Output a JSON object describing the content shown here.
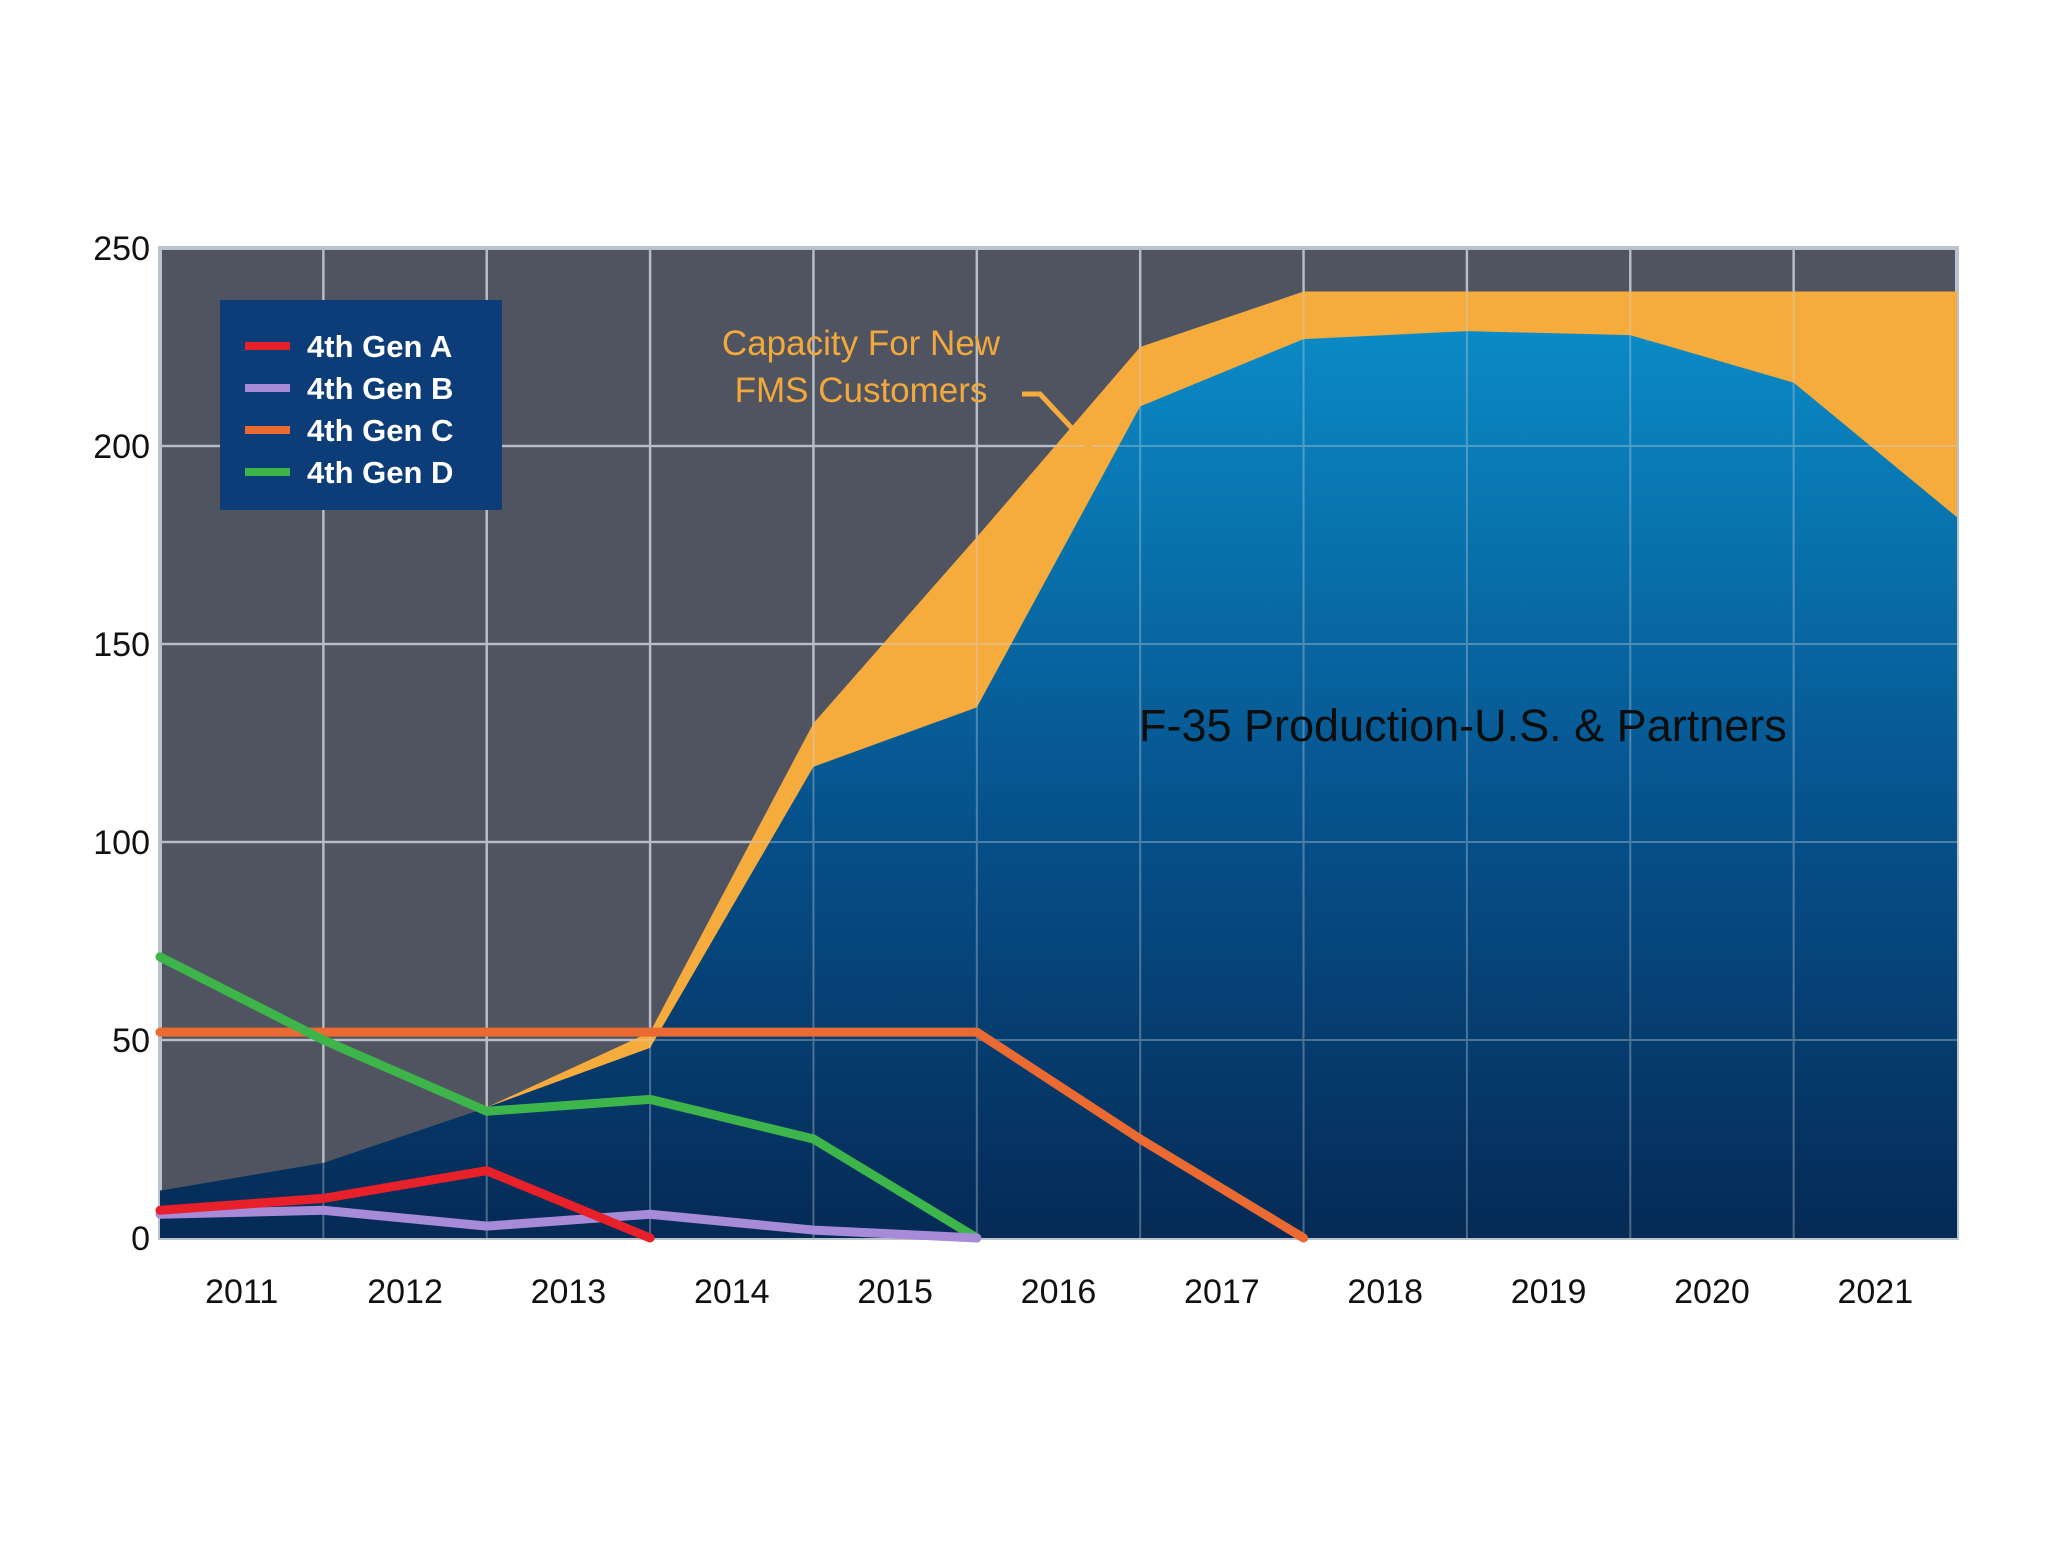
{
  "chart_data": {
    "type": "area",
    "title": "",
    "xlabel": "",
    "ylabel": "",
    "ylim": [
      0,
      250
    ],
    "yticks": [
      0,
      50,
      100,
      150,
      200,
      250
    ],
    "categories": [
      "2011",
      "2012",
      "2013",
      "2014",
      "2015",
      "2016",
      "2017",
      "2018",
      "2019",
      "2020",
      "2021"
    ],
    "x_points": [
      2010.5,
      2011.5,
      2012.5,
      2013.5,
      2014.5,
      2015.5,
      2016.5,
      2017.5,
      2018.5,
      2019.5,
      2020.5,
      2021.5
    ],
    "grid": true,
    "areas": [
      {
        "name": "F-35 Production-U.S. & Partners",
        "color": "#0a5d96",
        "values": [
          12,
          19,
          33,
          48,
          119,
          134,
          210,
          227,
          229,
          228,
          216,
          182
        ]
      },
      {
        "name": "Capacity For New FMS Customers",
        "color": "#f6ab3d",
        "values": [
          12,
          19,
          33,
          52,
          130,
          177,
          225,
          239,
          239,
          239,
          239,
          239
        ]
      }
    ],
    "series": [
      {
        "name": "4th Gen A",
        "color": "#e8202a",
        "x": [
          2010.5,
          2011.5,
          2012.5,
          2013.5
        ],
        "values": [
          7,
          10,
          17,
          0
        ]
      },
      {
        "name": "4th Gen B",
        "color": "#a78bd9",
        "x": [
          2010.5,
          2011.5,
          2012.5,
          2013.5,
          2014.5,
          2015.5
        ],
        "values": [
          6,
          7,
          3,
          6,
          2,
          0
        ]
      },
      {
        "name": "4th Gen C",
        "color": "#ea6a32",
        "x": [
          2010.5,
          2011.5,
          2012.5,
          2013.5,
          2014.5,
          2015.5,
          2016.5,
          2017.5
        ],
        "values": [
          52,
          52,
          52,
          52,
          52,
          52,
          25,
          0
        ]
      },
      {
        "name": "4th Gen D",
        "color": "#3db54a",
        "x": [
          2010.5,
          2011.5,
          2012.5,
          2013.5,
          2014.5,
          2015.5
        ],
        "values": [
          71,
          50,
          32,
          35,
          25,
          0
        ]
      }
    ],
    "legend": {
      "placement": "top-left",
      "entries": [
        "4th Gen A",
        "4th Gen B",
        "4th Gen C",
        "4th Gen D"
      ]
    },
    "annotations": {
      "capacity_line1": "Capacity For New",
      "capacity_line2": "FMS Customers",
      "production": "F-35 Production-U.S. & Partners"
    }
  }
}
